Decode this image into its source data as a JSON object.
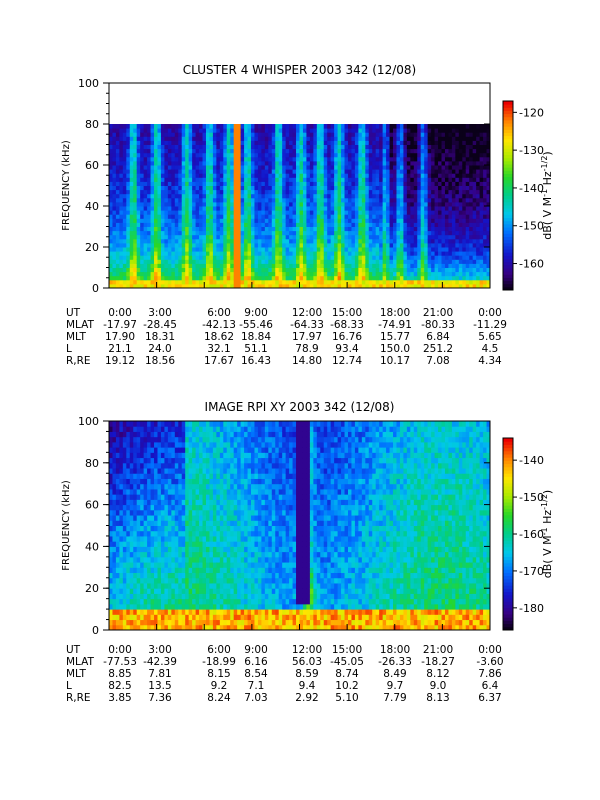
{
  "chart_data": [
    {
      "type": "heatmap",
      "title": "CLUSTER 4 WHISPER 2003 342 (12/08)",
      "ylabel": "FREQUENCY (kHz)",
      "ylim": [
        0,
        100
      ],
      "yticks": [
        0,
        20,
        40,
        60,
        80,
        100
      ],
      "data_ylim": [
        0,
        80
      ],
      "xticks": [
        "0:00",
        "3:00",
        "6:00",
        "9:00",
        "12:00",
        "15:00",
        "18:00",
        "21:00",
        "0:00"
      ],
      "colorbar": {
        "label": "dB( V M",
        "label_sup1": "-1",
        "label_mid": " Hz",
        "label_sup2": "-1/2",
        "label_end": ")",
        "range": [
          -167,
          -117
        ],
        "ticks": [
          -120,
          -130,
          -140,
          -150,
          -160
        ]
      },
      "ephemeris": [
        {
          "label": "UT",
          "values": [
            "0:00",
            "3:00",
            "6:00",
            "9:00",
            "12:00",
            "15:00",
            "18:00",
            "21:00",
            "0:00"
          ]
        },
        {
          "label": "MLAT",
          "values": [
            "-17.97",
            "-28.45",
            "-42.13",
            "-55.46",
            "-64.33",
            "-68.33",
            "-74.91",
            "-80.33",
            "-11.29"
          ]
        },
        {
          "label": "MLT",
          "values": [
            "17.90",
            "18.31",
            "18.62",
            "18.84",
            "17.97",
            "16.76",
            "15.77",
            "6.84",
            "5.65"
          ]
        },
        {
          "label": "L",
          "values": [
            "21.1",
            "24.0",
            "32.1",
            "51.1",
            "78.9",
            "93.4",
            "150.0",
            "251.2",
            "4.5"
          ]
        },
        {
          "label": "R,RE",
          "values": [
            "19.12",
            "18.56",
            "17.67",
            "16.43",
            "14.80",
            "12.74",
            "10.17",
            "7.08",
            "4.34"
          ]
        }
      ]
    },
    {
      "type": "heatmap",
      "title": "IMAGE RPI XY 2003 342 (12/08)",
      "ylabel": "FREQUENCY (kHz)",
      "ylim": [
        0,
        100
      ],
      "yticks": [
        0,
        20,
        40,
        60,
        80,
        100
      ],
      "xticks": [
        "0:00",
        "3:00",
        "6:00",
        "9:00",
        "12:00",
        "15:00",
        "18:00",
        "21:00",
        "0:00"
      ],
      "colorbar": {
        "label": "dB( V M",
        "label_sup1": "-1",
        "label_mid": " Hz",
        "label_sup2": "-1/2",
        "label_end": ")",
        "range": [
          -186,
          -134
        ],
        "ticks": [
          -140,
          -150,
          -160,
          -170,
          -180
        ]
      },
      "ephemeris": [
        {
          "label": "UT",
          "values": [
            "0:00",
            "3:00",
            "6:00",
            "9:00",
            "12:00",
            "15:00",
            "18:00",
            "21:00",
            "0:00"
          ]
        },
        {
          "label": "MLAT",
          "values": [
            "-77.53",
            "-42.39",
            "-18.99",
            "6.16",
            "56.03",
            "-45.05",
            "-26.33",
            "-18.27",
            "-3.60"
          ]
        },
        {
          "label": "MLT",
          "values": [
            "8.85",
            "7.81",
            "8.15",
            "8.54",
            "8.59",
            "8.74",
            "8.49",
            "8.12",
            "7.86"
          ]
        },
        {
          "label": "L",
          "values": [
            "82.5",
            "13.5",
            "9.2",
            "7.1",
            "9.4",
            "10.2",
            "9.7",
            "9.0",
            "6.4"
          ]
        },
        {
          "label": "R,RE",
          "values": [
            "3.85",
            "7.36",
            "8.24",
            "7.03",
            "2.92",
            "5.10",
            "7.79",
            "8.13",
            "6.37"
          ]
        }
      ]
    }
  ]
}
